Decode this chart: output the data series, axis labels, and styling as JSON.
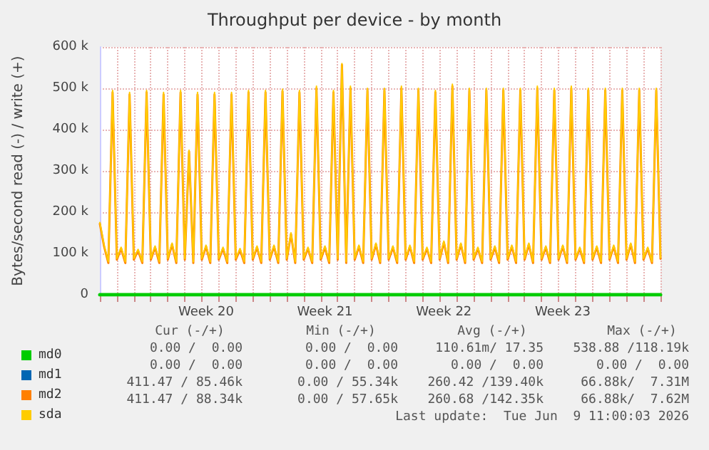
{
  "chart_data": {
    "type": "line",
    "title": "Throughput per device - by month",
    "ylabel": "Bytes/second read (-) / write (+)",
    "categories": [
      null,
      null,
      null,
      null,
      null,
      null,
      null,
      null,
      null,
      null,
      null,
      null,
      null,
      null,
      null,
      null,
      null,
      null,
      null,
      null,
      null,
      null,
      null,
      null,
      null,
      "Week 20",
      null,
      null,
      null,
      null,
      null,
      null,
      null,
      null,
      null,
      null,
      null,
      null,
      null,
      null,
      null,
      null,
      null,
      null,
      null,
      null,
      null,
      null,
      null,
      null,
      null,
      null,
      null,
      "Week 21",
      null,
      null,
      null,
      null,
      null,
      null,
      null,
      null,
      null,
      null,
      null,
      null,
      null,
      null,
      null,
      null,
      null,
      null,
      null,
      null,
      null,
      null,
      null,
      null,
      null,
      null,
      null,
      "Week 22",
      null,
      null,
      null,
      null,
      null,
      null,
      null,
      null,
      null,
      null,
      null,
      null,
      null,
      null,
      null,
      null,
      null,
      null,
      null,
      null,
      null,
      null,
      null,
      null,
      null,
      null,
      null,
      "Week 23",
      null,
      null,
      null,
      null,
      null,
      null,
      null,
      null,
      null,
      null,
      null,
      null,
      null,
      null,
      null,
      null,
      null,
      null,
      null,
      null,
      null,
      null,
      null
    ],
    "ylim": [
      0,
      600000
    ],
    "yticks": [
      0,
      {
        "value": 100000,
        "label": "100 k"
      },
      {
        "value": 200000,
        "label": "200 k"
      },
      {
        "value": 300000,
        "label": "300 k"
      },
      {
        "value": 400000,
        "label": "400 k"
      },
      {
        "value": 500000,
        "label": "500 k"
      },
      {
        "value": 600000,
        "label": "600 k"
      }
    ],
    "grid": true,
    "legend": "bottom left",
    "marker": "none",
    "line_style": "solid",
    "series": [
      {
        "name": "md0",
        "color": "#00cc00",
        "values": [
          0,
          0,
          0,
          0,
          0,
          0,
          0,
          0,
          0,
          0,
          0,
          0,
          0,
          0,
          0,
          0,
          0,
          0,
          0,
          0,
          0,
          0,
          0,
          0,
          0,
          0,
          0,
          0,
          0,
          0,
          0,
          0,
          0,
          0,
          0,
          0,
          0,
          0,
          0,
          0,
          0,
          0,
          0,
          0,
          0,
          0,
          0,
          0,
          0,
          0,
          0,
          0,
          0,
          0,
          0,
          0,
          0,
          0,
          0,
          0,
          0,
          0,
          0,
          0,
          0,
          0,
          0,
          0,
          0,
          0,
          0,
          0,
          0,
          0,
          0,
          0,
          0,
          0,
          0,
          0,
          0,
          0,
          0,
          0,
          0,
          0,
          0,
          0,
          0,
          0,
          0,
          0,
          0,
          0,
          0,
          0,
          0,
          0,
          0,
          0,
          0,
          0,
          0,
          0,
          0,
          0,
          0,
          0,
          0,
          0,
          0,
          0,
          0,
          0,
          0,
          0,
          0,
          0,
          0,
          0,
          0,
          0,
          0,
          0,
          0,
          0,
          0,
          0,
          0,
          0,
          0,
          0,
          0
        ]
      },
      {
        "name": "md1",
        "color": "#0066b3",
        "values": [
          null,
          null,
          null,
          null,
          null,
          null,
          null,
          null,
          null,
          null,
          null,
          null,
          null,
          null,
          null,
          null,
          null,
          null,
          null,
          null,
          null,
          null,
          null,
          null,
          null,
          null,
          null,
          null,
          null,
          null,
          null,
          null,
          null,
          null,
          null,
          null,
          null,
          null,
          null,
          null,
          null,
          null,
          null,
          null,
          null,
          null,
          null,
          null,
          null,
          null,
          null,
          null,
          null,
          null,
          null,
          null,
          null,
          null,
          null,
          null,
          null,
          null,
          null,
          null,
          null,
          null,
          null,
          null,
          null,
          null,
          null,
          null,
          null,
          null,
          null,
          null,
          null,
          null,
          null,
          null,
          null,
          null,
          null,
          null,
          null,
          null,
          null,
          null,
          null,
          null,
          null,
          null,
          null,
          null,
          null,
          null,
          null,
          null,
          null,
          null,
          null,
          null,
          null,
          null,
          null,
          null,
          null,
          null,
          null,
          null,
          null,
          null,
          null,
          null,
          null,
          null,
          null,
          null,
          null,
          null,
          null,
          null,
          null,
          null,
          null,
          null,
          null,
          null,
          null,
          null,
          null,
          null,
          null
        ]
      },
      {
        "name": "md2",
        "color": "#ff8000",
        "values": [
          172000,
          117000,
          77000,
          490000,
          85000,
          112000,
          77000,
          485000,
          85000,
          107000,
          77000,
          490000,
          85000,
          115000,
          77000,
          485000,
          85000,
          122000,
          77000,
          490000,
          85000,
          347000,
          77000,
          485000,
          85000,
          117000,
          77000,
          485000,
          85000,
          112000,
          77000,
          485000,
          85000,
          109000,
          77000,
          490000,
          85000,
          115000,
          77000,
          490000,
          85000,
          117000,
          77000,
          493000,
          85000,
          147000,
          77000,
          490000,
          85000,
          112000,
          77000,
          500000,
          85000,
          115000,
          77000,
          490000,
          85000,
          557000,
          77000,
          500000,
          85000,
          117000,
          77000,
          495000,
          85000,
          122000,
          77000,
          495000,
          85000,
          115000,
          77000,
          500000,
          85000,
          117000,
          77000,
          495000,
          85000,
          112000,
          77000,
          490000,
          85000,
          127000,
          77000,
          505000,
          85000,
          122000,
          77000,
          495000,
          85000,
          112000,
          77000,
          495000,
          85000,
          115000,
          77000,
          495000,
          85000,
          117000,
          77000,
          495000,
          85000,
          122000,
          77000,
          500000,
          85000,
          115000,
          77000,
          495000,
          85000,
          117000,
          77000,
          500000,
          85000,
          112000,
          77000,
          495000,
          85000,
          115000,
          77000,
          495000,
          85000,
          117000,
          77000,
          495000,
          85000,
          122000,
          77000,
          495000,
          85000,
          112000,
          77000,
          495000,
          87000
        ]
      },
      {
        "name": "sda",
        "color": "#ffcc00",
        "values": [
          175000,
          120000,
          80000,
          495000,
          88000,
          115000,
          80000,
          490000,
          88000,
          110000,
          80000,
          495000,
          88000,
          118000,
          80000,
          490000,
          88000,
          125000,
          80000,
          495000,
          88000,
          350000,
          80000,
          490000,
          88000,
          120000,
          80000,
          490000,
          88000,
          115000,
          80000,
          490000,
          88000,
          112000,
          80000,
          495000,
          88000,
          118000,
          80000,
          495000,
          88000,
          120000,
          80000,
          498000,
          88000,
          150000,
          80000,
          495000,
          88000,
          115000,
          80000,
          505000,
          88000,
          118000,
          80000,
          495000,
          88000,
          560000,
          80000,
          505000,
          88000,
          120000,
          80000,
          500000,
          88000,
          125000,
          80000,
          500000,
          88000,
          118000,
          80000,
          505000,
          88000,
          120000,
          80000,
          500000,
          88000,
          115000,
          80000,
          495000,
          88000,
          130000,
          80000,
          510000,
          88000,
          125000,
          80000,
          500000,
          88000,
          115000,
          80000,
          500000,
          88000,
          118000,
          80000,
          500000,
          88000,
          120000,
          80000,
          500000,
          88000,
          125000,
          80000,
          505000,
          88000,
          118000,
          80000,
          500000,
          88000,
          120000,
          80000,
          505000,
          88000,
          115000,
          80000,
          500000,
          88000,
          118000,
          80000,
          500000,
          88000,
          120000,
          80000,
          500000,
          88000,
          125000,
          80000,
          500000,
          88000,
          115000,
          80000,
          500000,
          90000
        ]
      }
    ],
    "annotations": [
      "Cur (-/+)",
      "Min (-/+)",
      "Avg (-/+)",
      "Max (-/+)",
      "0.00 /  0.00",
      "0.00 /  0.00",
      "110.61m/ 17.35",
      "538.88 /118.19k",
      "0.00 /  0.00",
      "0.00 /  0.00",
      "0.00 /  0.00",
      "0.00 /  0.00",
      "411.47 / 85.46k",
      "0.00 / 55.34k",
      "260.42 /139.40k",
      "66.88k/  7.31M",
      "411.47 / 88.34k",
      "0.00 / 57.65k",
      "260.68 /142.35k",
      "66.88k/  7.62M",
      "Last update:  Tue Jun  9 11:00:03 2026"
    ]
  }
}
